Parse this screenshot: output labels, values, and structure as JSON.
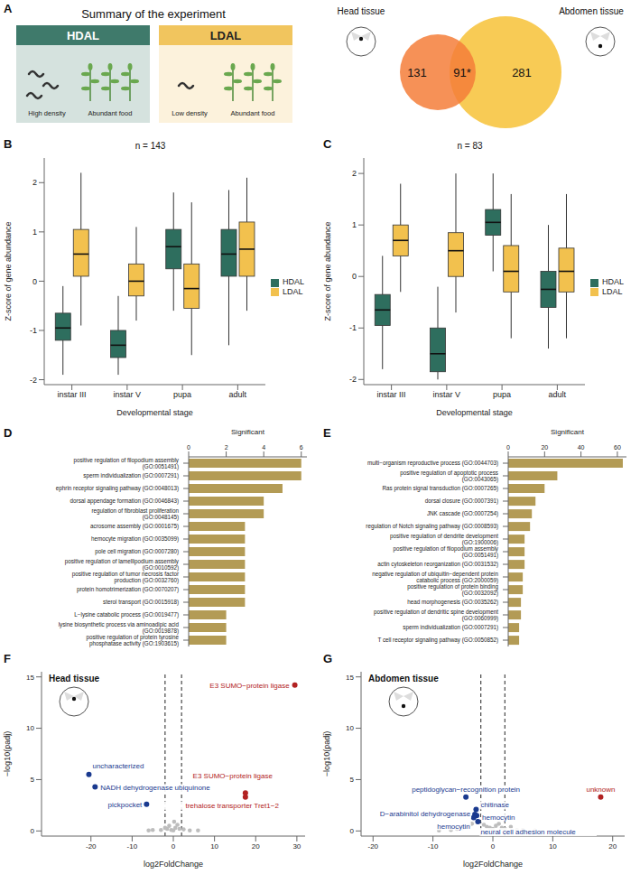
{
  "panel_a": {
    "letter": "A",
    "title": "Summary of the experiment",
    "conditions": [
      {
        "name": "HDAL",
        "density": "High density",
        "food": "Abundant food",
        "color": "#3f7a6b"
      },
      {
        "name": "LDAL",
        "density": "Low density",
        "food": "Abundant food",
        "color": "#f1c55e"
      }
    ],
    "venn": {
      "sets": [
        {
          "label": "Head tissue",
          "count": 131,
          "color": "#f47e3a"
        },
        {
          "label": "Abdomen tissue",
          "count": 281,
          "color": "#f8cb55"
        }
      ],
      "overlap": {
        "label": "91*"
      }
    }
  },
  "chart_data": [
    {
      "panel": "B",
      "type": "boxplot",
      "title": "n = 143",
      "x_label": "Developmental stage",
      "y_label": "Z-score of gene abundance",
      "categories": [
        "instar III",
        "instar V",
        "pupa",
        "adult"
      ],
      "ylim": [
        -2.1,
        2.5
      ],
      "yticks": [
        -2,
        -1,
        0,
        1,
        2
      ],
      "legend": "right",
      "series": [
        {
          "name": "HDAL",
          "color": "#2e6e5e",
          "min": [
            -1.9,
            -1.9,
            -0.6,
            -1.3
          ],
          "q1": [
            -1.2,
            -1.55,
            0.25,
            0.1
          ],
          "median": [
            -0.95,
            -1.3,
            0.7,
            0.55
          ],
          "q3": [
            -0.65,
            -1.0,
            1.05,
            1.05
          ],
          "max": [
            -0.1,
            -0.3,
            1.8,
            1.85
          ]
        },
        {
          "name": "LDAL",
          "color": "#f2c14e",
          "min": [
            -0.9,
            -0.8,
            -1.5,
            -0.6
          ],
          "q1": [
            0.1,
            -0.3,
            -0.55,
            0.1
          ],
          "median": [
            0.55,
            0.0,
            -0.15,
            0.65
          ],
          "q3": [
            1.05,
            0.35,
            0.35,
            1.2
          ],
          "max": [
            2.2,
            1.1,
            1.6,
            2.1
          ]
        }
      ]
    },
    {
      "panel": "C",
      "type": "boxplot",
      "title": "n = 83",
      "x_label": "Developmental stage",
      "y_label": "Z-score of gene abundance",
      "categories": [
        "instar III",
        "instar V",
        "pupa",
        "adult"
      ],
      "ylim": [
        -2.1,
        2.3
      ],
      "yticks": [
        -2,
        -1,
        0,
        1,
        2
      ],
      "legend": "right",
      "series": [
        {
          "name": "HDAL",
          "color": "#2e6e5e",
          "min": [
            -1.8,
            -2.0,
            0.1,
            -1.4
          ],
          "q1": [
            -0.95,
            -1.85,
            0.8,
            -0.6
          ],
          "median": [
            -0.65,
            -1.5,
            1.05,
            -0.25
          ],
          "q3": [
            -0.35,
            -1.0,
            1.3,
            0.1
          ],
          "max": [
            0.4,
            -0.2,
            2.0,
            1.0
          ]
        },
        {
          "name": "LDAL",
          "color": "#f2c14e",
          "min": [
            -0.3,
            -0.7,
            -1.2,
            -1.2
          ],
          "q1": [
            0.4,
            0.0,
            -0.3,
            -0.3
          ],
          "median": [
            0.7,
            0.5,
            0.1,
            0.1
          ],
          "q3": [
            1.0,
            0.85,
            0.6,
            0.55
          ],
          "max": [
            1.8,
            2.0,
            1.6,
            1.6
          ]
        }
      ]
    },
    {
      "panel": "D",
      "type": "bar",
      "orientation": "horizontal",
      "x_label": "Significant",
      "color": "#b39b55",
      "xlim": [
        0,
        6.3
      ],
      "xticks": [
        0,
        2,
        4,
        6
      ],
      "categories": [
        "positive regulation of filopodium assembly (GO:0051491)",
        "sperm individualization (GO:0007291)",
        "ephrin receptor signaling pathway (GO:0048013)",
        "dorsal appendage formation (GO:0046843)",
        "regulation of fibroblast proliferation (GO:0048145)",
        "acrosome assembly (GO:0001675)",
        "hemocyte migration (GO:0035099)",
        "pole cell migration (GO:0007280)",
        "positive regulation of lamellipodium assembly (GO:0010592)",
        "positive regulation of tumor necrosis factor production (GO:0032760)",
        "protein homotrimerization (GO:0070207)",
        "sterol transport (GO:0015918)",
        "L−lysine catabolic process (GO:0019477)",
        "lysine biosynthetic process via aminoadipic acid (GO:0019878)",
        "positive regulation of protein tyrosine phosphatase activity (GO:1903615)"
      ],
      "values": [
        6,
        6,
        5,
        4,
        4,
        3,
        3,
        3,
        3,
        3,
        3,
        3,
        2,
        2,
        2
      ]
    },
    {
      "panel": "E",
      "type": "bar",
      "orientation": "horizontal",
      "x_label": "Significant",
      "color": "#b39b55",
      "xlim": [
        0,
        65
      ],
      "xticks": [
        0,
        20,
        40,
        60
      ],
      "categories": [
        "multi−organism reproductive process (GO:0044703)",
        "positive regulation of apoptotic process (GO:0043065)",
        "Ras protein signal transduction (GO:0007265)",
        "dorsal closure (GO:0007391)",
        "JNK cascade (GO:0007254)",
        "regulation of Notch signaling pathway (GO:0008593)",
        "positive regulation of dendrite development (GO:1900006)",
        "positive regulation of filopodium assembly (GO:0051491)",
        "actin cytoskeleton reorganization (GO:0031532)",
        "negative regulation of ubiquitin−dependent protein catabolic process (GO:2000059)",
        "positive regulation of protein binding (GO:0032092)",
        "head morphogenesis (GO:0035262)",
        "positive regulation of dendritic spine development (GO:0060999)",
        "sperm individualization (GO:0007291)",
        "T cell receptor signaling pathway (GO:0050852)"
      ],
      "values": [
        63,
        27,
        20,
        15,
        13,
        12,
        9,
        9,
        9,
        8,
        8,
        7,
        7,
        6,
        6
      ]
    },
    {
      "panel": "F",
      "type": "scatter",
      "annotation": "Head tissue",
      "x_label": "log2FoldChange",
      "y_label": "−log10(padj)",
      "xlim": [
        -32,
        32
      ],
      "xticks": [
        -20,
        -10,
        0,
        10,
        20,
        30
      ],
      "ylim": [
        -0.5,
        15.5
      ],
      "yticks": [
        0,
        5,
        10,
        15
      ],
      "fold_change_thresholds": [
        -2,
        2
      ],
      "series": [
        {
          "color": "#bdbdbd",
          "x": [
            -6,
            -5,
            -3,
            -2,
            -1.5,
            -1,
            -0.5,
            0,
            0.2,
            0.5,
            1,
            1.5,
            2.5,
            4,
            6
          ],
          "y": [
            0.05,
            0.1,
            0.1,
            0.3,
            0.2,
            0.5,
            0.1,
            0.05,
            0.9,
            0.3,
            0.6,
            0.2,
            0.15,
            0.05,
            0.05
          ]
        },
        {
          "color": "#1a3a8f",
          "x": [
            -20.5,
            -19,
            -6.5
          ],
          "y": [
            5.5,
            4.3,
            2.6
          ],
          "labels": [
            "uncharacterized",
            "NADH dehydrogenase ubiquinone",
            "pickpocket"
          ]
        },
        {
          "color": "#b22222",
          "x": [
            29.5,
            17.5,
            17.5
          ],
          "y": [
            14.2,
            3.7,
            3.3
          ],
          "labels": [
            "E3 SUMO−protein ligase",
            "E3 SUMO−protein ligase",
            "trehalose transporter Tret1−2"
          ]
        }
      ]
    },
    {
      "panel": "G",
      "type": "scatter",
      "annotation": "Abdomen tissue",
      "x_label": "log2FoldChange",
      "y_label": "−log10(padj)",
      "xlim": [
        -22,
        22
      ],
      "xticks": [
        -20,
        -10,
        0,
        10,
        20
      ],
      "ylim": [
        -0.5,
        15.5
      ],
      "yticks": [
        0,
        5,
        10,
        15
      ],
      "fold_change_thresholds": [
        -2,
        2
      ],
      "series": [
        {
          "color": "#bdbdbd",
          "x": [
            -9,
            -7,
            -6,
            -5,
            -4,
            -3.5,
            -1.5,
            -1,
            -0.5,
            0,
            0.5,
            1,
            1.5,
            2,
            3,
            4,
            5,
            7
          ],
          "y": [
            0.05,
            0.1,
            0.2,
            0.3,
            0.5,
            0.7,
            0.6,
            0.4,
            0.3,
            0.2,
            0.5,
            0.7,
            0.3,
            0.2,
            0.4,
            0.1,
            0.1,
            0.05
          ]
        },
        {
          "color": "#1a3a8f",
          "x": [
            -4.5,
            -2.8,
            -3,
            -2.7,
            -3.2,
            -2.5
          ],
          "y": [
            3.3,
            2.1,
            1.6,
            1.5,
            1.3,
            0.9
          ],
          "labels": [
            "peptidoglycan−recognition protein",
            "chitinase",
            "D−arabinitol dehydrogenase",
            "hemocytin",
            "hemocytin",
            "neural cell adhesion molecule"
          ]
        },
        {
          "color": "#b22222",
          "x": [
            18
          ],
          "y": [
            3.3
          ],
          "labels": [
            "unknown"
          ]
        }
      ]
    }
  ]
}
